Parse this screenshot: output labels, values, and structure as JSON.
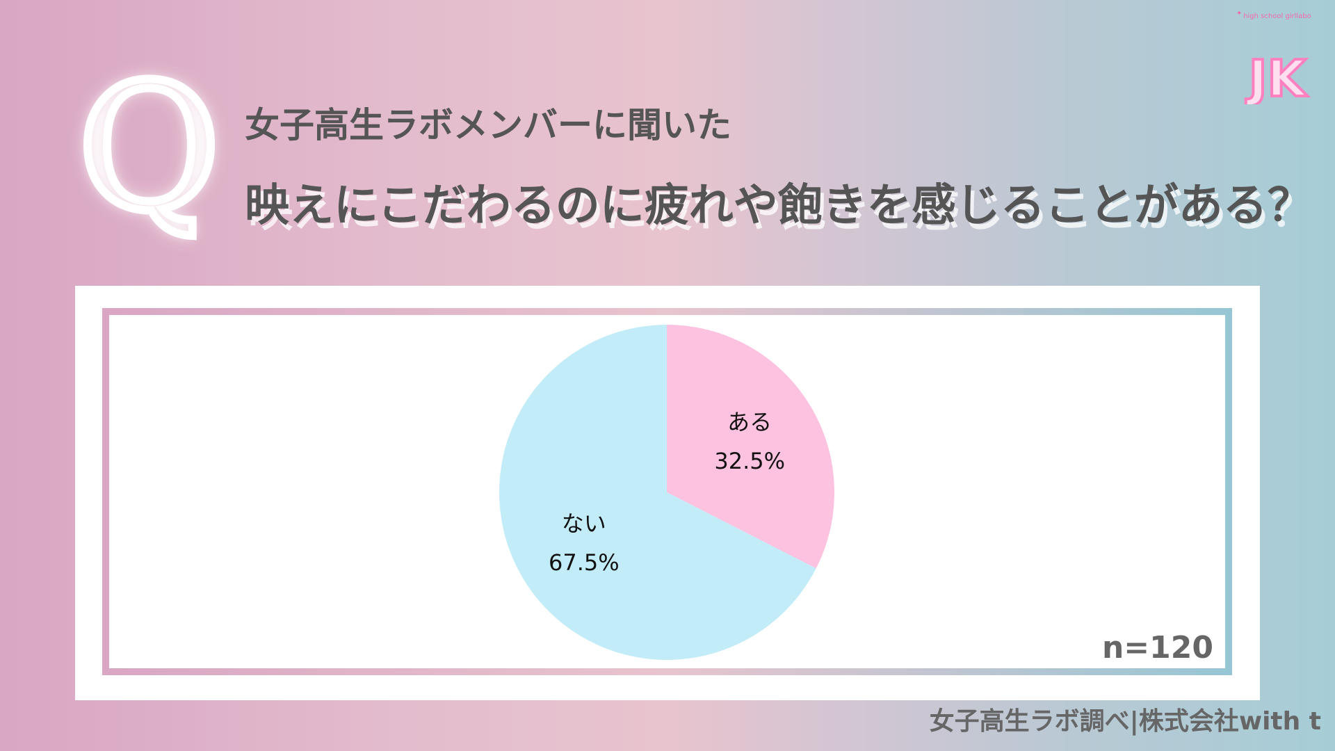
{
  "header": {
    "q_mark": "Q",
    "subtitle": "女子高生ラボメンバーに聞いた",
    "question": "映えにこだわるのに疲れや飽きを感じることがある？"
  },
  "logo": {
    "text": "JK",
    "tagline": "high school girllabo"
  },
  "chart_data": {
    "type": "pie",
    "slices": [
      {
        "label": "ある",
        "value": 32.5,
        "display": "32.5%",
        "color": "#fcc2e0"
      },
      {
        "label": "ない",
        "value": 67.5,
        "display": "67.5%",
        "color": "#c3ecf9"
      }
    ],
    "start": "top",
    "direction": "clockwise",
    "sample_size": "n=120"
  },
  "footer": {
    "credit": "女子高生ラボ調べ|株式会社with t"
  }
}
